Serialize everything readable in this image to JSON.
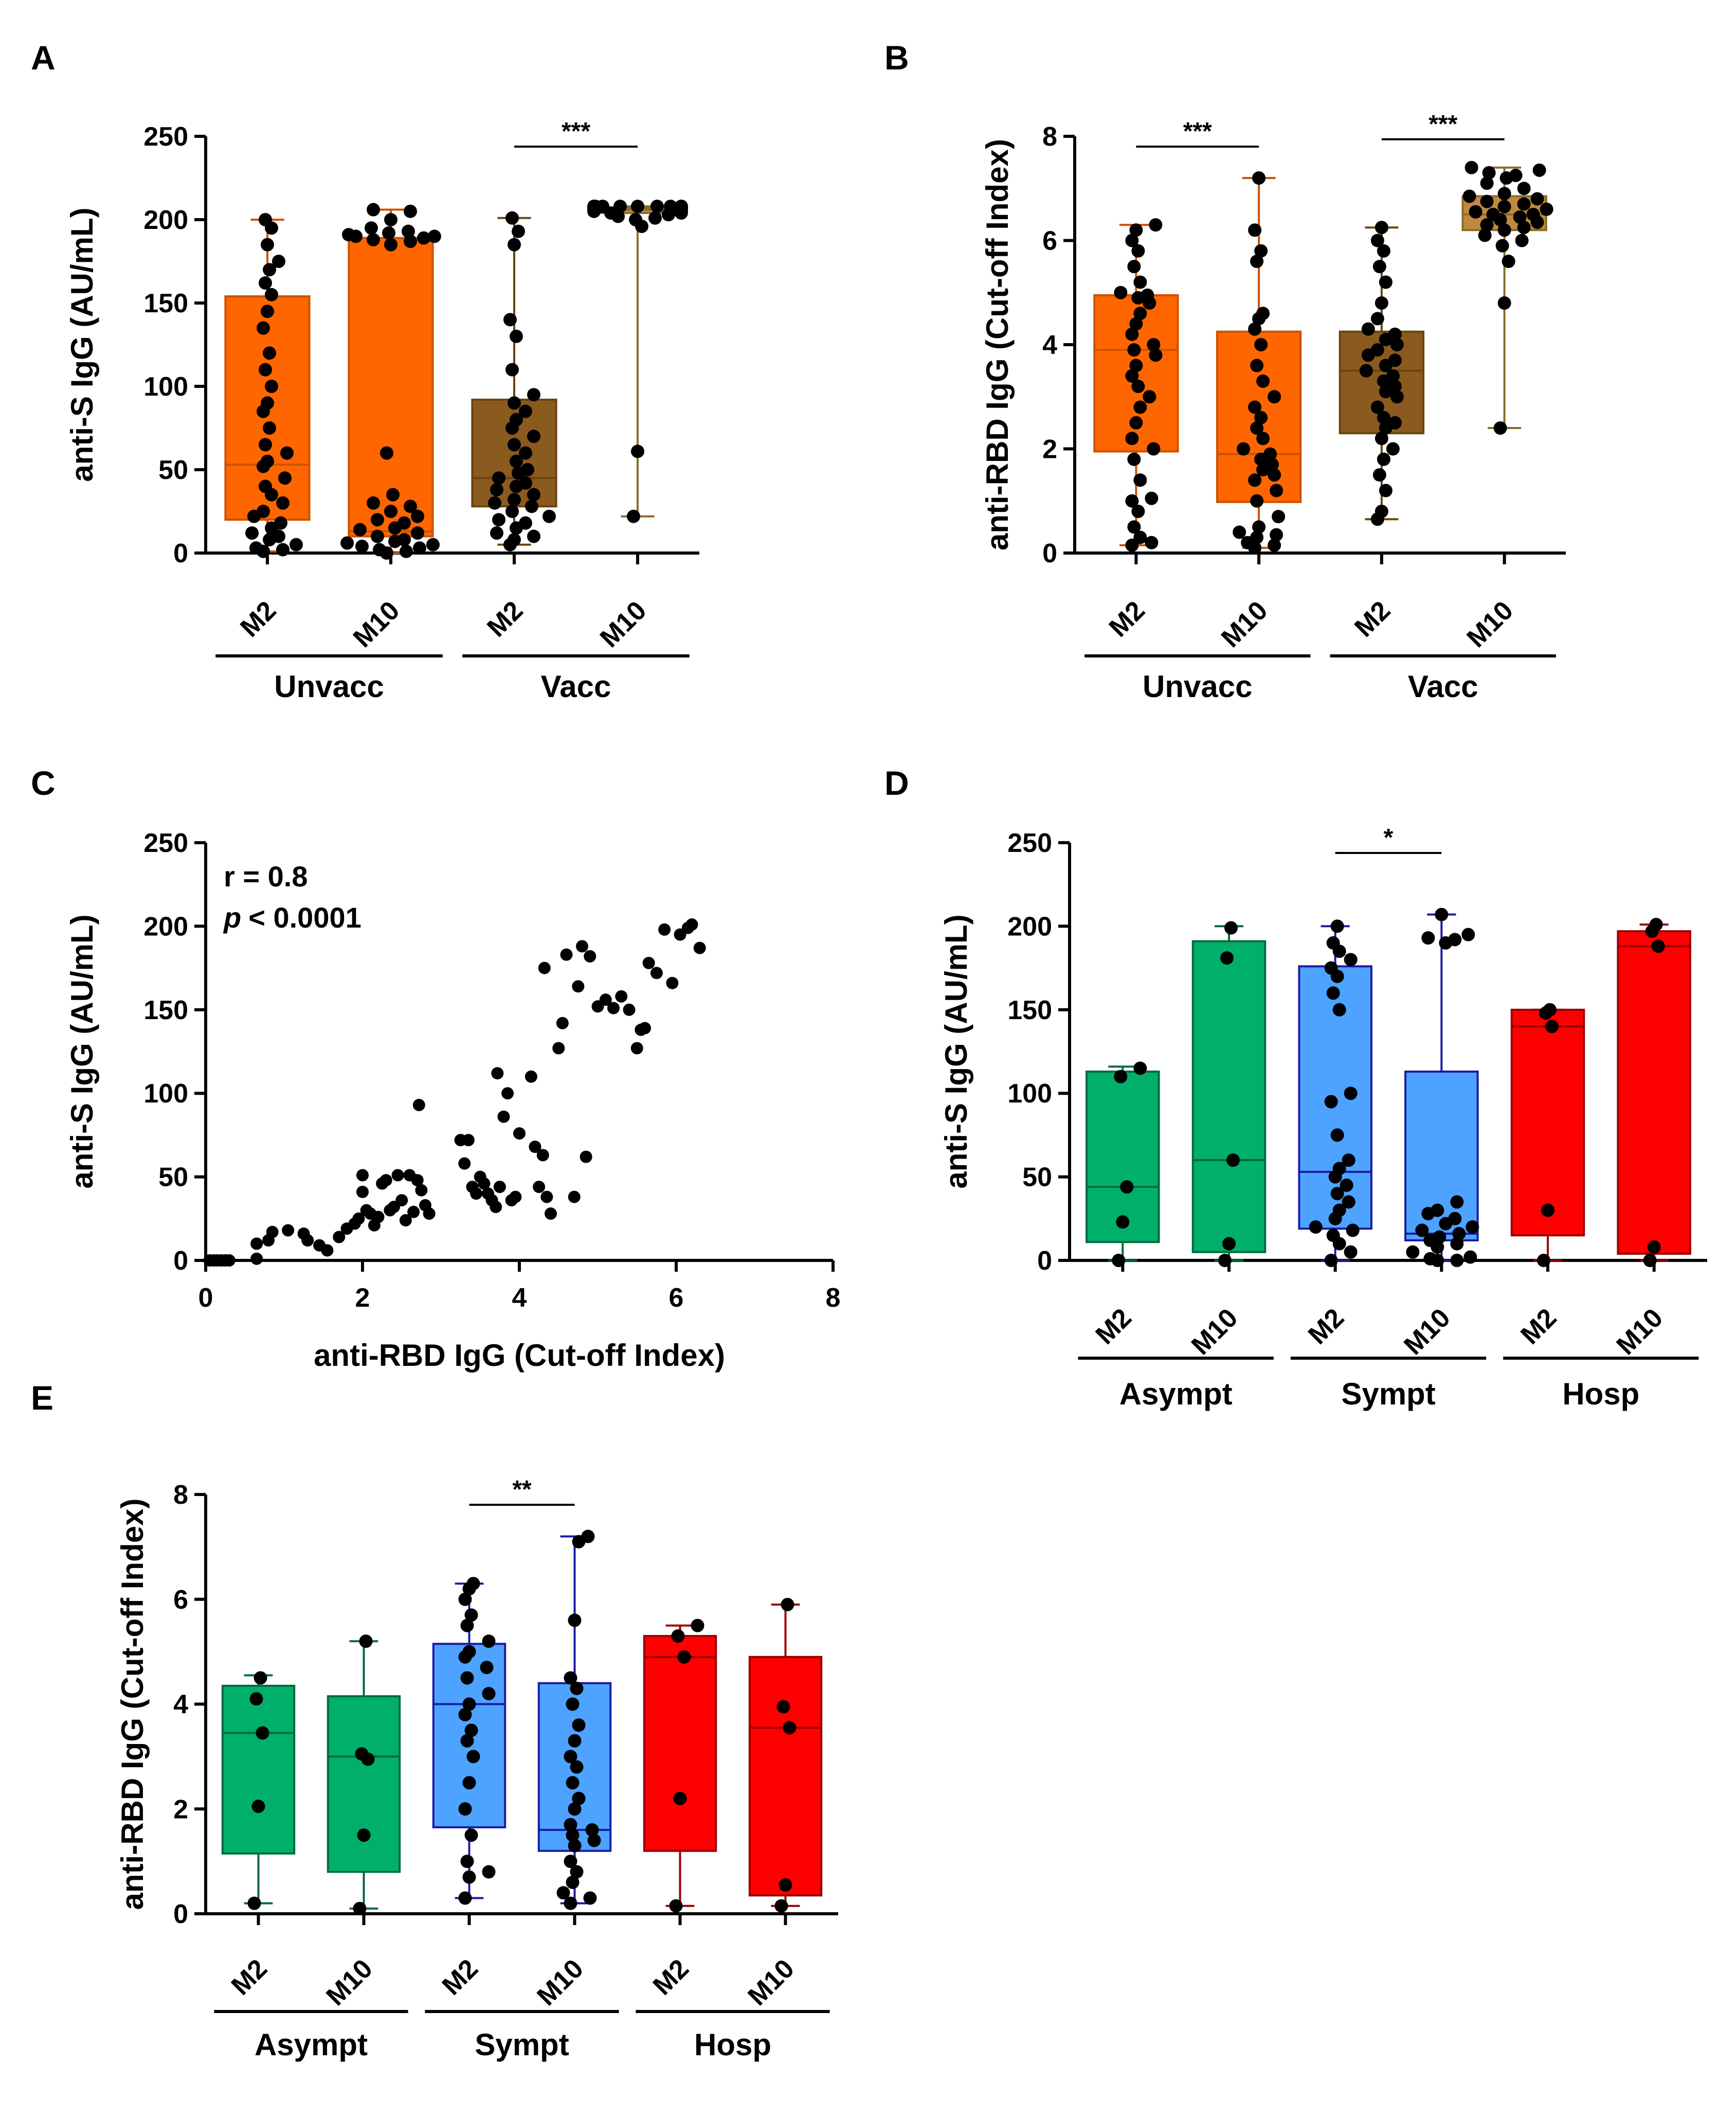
{
  "figure": {
    "panel_letters": [
      "A",
      "B",
      "C",
      "D",
      "E"
    ]
  },
  "chart_data": [
    {
      "id": "A",
      "type": "box",
      "ylabel": "anti-S IgG (AU/mL)",
      "ylim": [
        0,
        250
      ],
      "yticks": [
        0,
        50,
        100,
        150,
        200,
        250
      ],
      "categories": [
        "M2",
        "M10",
        "M2",
        "M10"
      ],
      "groups": [
        {
          "name": "Unvacc",
          "span": [
            0,
            1
          ]
        },
        {
          "name": "Vacc",
          "span": [
            2,
            3
          ]
        }
      ],
      "significance": [
        {
          "from": 2,
          "to": 3,
          "label": "***"
        }
      ],
      "boxes": [
        {
          "q1": 20,
          "median": 53,
          "q3": 154,
          "min": 1,
          "max": 200,
          "fill": "#ff6600",
          "line": "#cc5200",
          "points": [
            1,
            2,
            3,
            5,
            8,
            10,
            12,
            15,
            18,
            22,
            25,
            30,
            35,
            40,
            45,
            52,
            55,
            60,
            65,
            75,
            85,
            90,
            100,
            110,
            120,
            135,
            145,
            155,
            162,
            170,
            175,
            185,
            195,
            200
          ]
        },
        {
          "q1": 10,
          "median": 13,
          "q3": 189,
          "min": 0,
          "max": 206,
          "fill": "#ff6600",
          "line": "#cc5200",
          "points": [
            0,
            1,
            2,
            3,
            4,
            5,
            6,
            7,
            8,
            10,
            12,
            14,
            15,
            18,
            20,
            22,
            25,
            28,
            30,
            35,
            60,
            185,
            187,
            188,
            189,
            190,
            190,
            191,
            192,
            193,
            195,
            200,
            205,
            206
          ]
        },
        {
          "q1": 28,
          "median": 45,
          "q3": 92,
          "min": 5,
          "max": 201,
          "fill": "#8b5a1e",
          "line": "#6b4410",
          "points": [
            5,
            8,
            10,
            12,
            15,
            18,
            20,
            22,
            25,
            28,
            30,
            32,
            35,
            38,
            40,
            42,
            45,
            48,
            50,
            55,
            60,
            65,
            70,
            75,
            80,
            85,
            90,
            95,
            110,
            130,
            140,
            185,
            193,
            201
          ]
        },
        {
          "q1": 204,
          "median": 206,
          "q3": 207,
          "min": 22,
          "max": 208,
          "fill": "#c08a3e",
          "line": "#8b6a2a",
          "points": [
            22,
            61,
            196,
            200,
            201,
            202,
            203,
            204,
            204,
            205,
            205,
            205,
            206,
            206,
            206,
            206,
            207,
            207,
            207,
            207,
            207,
            208,
            208,
            208,
            208,
            208,
            208,
            208,
            208,
            208,
            208,
            208,
            208,
            208
          ]
        }
      ]
    },
    {
      "id": "B",
      "type": "box",
      "ylabel": "anti-RBD IgG (Cut-off Index)",
      "ylim": [
        0,
        8
      ],
      "yticks": [
        0,
        2,
        4,
        6,
        8
      ],
      "categories": [
        "M2",
        "M10",
        "M2",
        "M10"
      ],
      "groups": [
        {
          "name": "Unvacc",
          "span": [
            0,
            1
          ]
        },
        {
          "name": "Vacc",
          "span": [
            2,
            3
          ]
        }
      ],
      "significance": [
        {
          "from": 0,
          "to": 1,
          "label": "***"
        },
        {
          "from": 2,
          "to": 3,
          "label": "***"
        }
      ],
      "boxes": [
        {
          "q1": 1.95,
          "median": 3.9,
          "q3": 4.95,
          "min": 0.15,
          "max": 6.3,
          "fill": "#ff6600",
          "line": "#cc5200",
          "points": [
            0.15,
            0.2,
            0.3,
            0.5,
            0.8,
            1.0,
            1.05,
            1.4,
            1.8,
            2.0,
            2.2,
            2.5,
            2.8,
            3.0,
            3.2,
            3.4,
            3.6,
            3.8,
            3.9,
            4.0,
            4.2,
            4.4,
            4.6,
            4.8,
            4.9,
            4.95,
            5.0,
            5.2,
            5.5,
            5.8,
            6.0,
            6.2,
            6.3
          ]
        },
        {
          "q1": 0.98,
          "median": 1.9,
          "q3": 4.25,
          "min": 0.1,
          "max": 7.2,
          "fill": "#ff6600",
          "line": "#cc5200",
          "points": [
            0.1,
            0.15,
            0.2,
            0.3,
            0.35,
            0.4,
            0.5,
            0.7,
            1.0,
            1.2,
            1.4,
            1.5,
            1.6,
            1.7,
            1.8,
            1.9,
            2.0,
            2.2,
            2.4,
            2.6,
            2.8,
            3.0,
            3.3,
            3.6,
            4.0,
            4.3,
            4.5,
            4.6,
            5.6,
            5.8,
            6.2,
            7.2
          ]
        },
        {
          "q1": 2.3,
          "median": 3.5,
          "q3": 4.25,
          "min": 0.65,
          "max": 6.25,
          "fill": "#8b5a1e",
          "line": "#6b4410",
          "points": [
            0.65,
            0.8,
            1.2,
            1.5,
            1.8,
            2.0,
            2.2,
            2.4,
            2.5,
            2.6,
            2.8,
            3.0,
            3.1,
            3.2,
            3.3,
            3.4,
            3.5,
            3.6,
            3.7,
            3.8,
            3.9,
            4.0,
            4.1,
            4.2,
            4.3,
            4.5,
            4.8,
            5.2,
            5.5,
            5.8,
            6.0,
            6.25
          ]
        },
        {
          "q1": 6.2,
          "median": 6.5,
          "q3": 6.85,
          "min": 2.4,
          "max": 7.4,
          "fill": "#c08a3e",
          "line": "#8b6a2a",
          "points": [
            2.4,
            4.8,
            5.6,
            5.9,
            6.0,
            6.1,
            6.2,
            6.25,
            6.3,
            6.35,
            6.4,
            6.45,
            6.5,
            6.5,
            6.55,
            6.6,
            6.65,
            6.7,
            6.75,
            6.8,
            6.85,
            6.9,
            7.0,
            7.1,
            7.2,
            7.25,
            7.3,
            7.35,
            7.4
          ]
        }
      ]
    },
    {
      "id": "C",
      "type": "scatter",
      "xlabel": "anti-RBD IgG (Cut-off Index)",
      "ylabel": "anti-S IgG (AU/mL)",
      "xlim": [
        0,
        8
      ],
      "ylim": [
        0,
        250
      ],
      "xticks": [
        0,
        2,
        4,
        6,
        8
      ],
      "yticks": [
        0,
        50,
        100,
        150,
        200,
        250
      ],
      "annotation": {
        "r_text": "r = 0.8",
        "p_symbol": "p",
        "p_text": "< 0.0001"
      },
      "points": [
        [
          0.05,
          0
        ],
        [
          0.1,
          0
        ],
        [
          0.15,
          0
        ],
        [
          0.2,
          0
        ],
        [
          0.25,
          0
        ],
        [
          0.3,
          0
        ],
        [
          0.65,
          1
        ],
        [
          0.65,
          10
        ],
        [
          0.8,
          12
        ],
        [
          0.85,
          17
        ],
        [
          1.05,
          18
        ],
        [
          1.25,
          16
        ],
        [
          1.3,
          12
        ],
        [
          1.45,
          9
        ],
        [
          1.55,
          6
        ],
        [
          1.7,
          14
        ],
        [
          1.8,
          19
        ],
        [
          1.9,
          22
        ],
        [
          1.95,
          25
        ],
        [
          2.0,
          41
        ],
        [
          2.0,
          51
        ],
        [
          2.05,
          30
        ],
        [
          2.1,
          28
        ],
        [
          2.15,
          21
        ],
        [
          2.2,
          26
        ],
        [
          2.25,
          46
        ],
        [
          2.3,
          48
        ],
        [
          2.35,
          30
        ],
        [
          2.4,
          32
        ],
        [
          2.45,
          51
        ],
        [
          2.5,
          36
        ],
        [
          2.55,
          24
        ],
        [
          2.6,
          51
        ],
        [
          2.65,
          29
        ],
        [
          2.7,
          48
        ],
        [
          2.72,
          93
        ],
        [
          2.75,
          42
        ],
        [
          2.8,
          33
        ],
        [
          2.85,
          28
        ],
        [
          3.25,
          72
        ],
        [
          3.3,
          58
        ],
        [
          3.35,
          72
        ],
        [
          3.4,
          44
        ],
        [
          3.45,
          40
        ],
        [
          3.5,
          50
        ],
        [
          3.55,
          46
        ],
        [
          3.6,
          40
        ],
        [
          3.65,
          36
        ],
        [
          3.7,
          32
        ],
        [
          3.72,
          112
        ],
        [
          3.75,
          44
        ],
        [
          3.8,
          86
        ],
        [
          3.85,
          100
        ],
        [
          3.9,
          36
        ],
        [
          3.95,
          38
        ],
        [
          4.0,
          76
        ],
        [
          4.15,
          110
        ],
        [
          4.2,
          68
        ],
        [
          4.25,
          44
        ],
        [
          4.3,
          63
        ],
        [
          4.32,
          175
        ],
        [
          4.35,
          38
        ],
        [
          4.4,
          28
        ],
        [
          4.5,
          127
        ],
        [
          4.55,
          142
        ],
        [
          4.6,
          183
        ],
        [
          4.7,
          38
        ],
        [
          4.75,
          164
        ],
        [
          4.8,
          188
        ],
        [
          4.85,
          62
        ],
        [
          4.9,
          182
        ],
        [
          5.0,
          152
        ],
        [
          5.1,
          156
        ],
        [
          5.2,
          151
        ],
        [
          5.3,
          158
        ],
        [
          5.4,
          150
        ],
        [
          5.5,
          127
        ],
        [
          5.55,
          138
        ],
        [
          5.6,
          139
        ],
        [
          5.65,
          178
        ],
        [
          5.75,
          172
        ],
        [
          5.85,
          198
        ],
        [
          5.95,
          166
        ],
        [
          6.05,
          195
        ],
        [
          6.15,
          199
        ],
        [
          6.2,
          201
        ],
        [
          6.3,
          187
        ]
      ]
    },
    {
      "id": "D",
      "type": "box",
      "ylabel": "anti-S IgG (AU/mL)",
      "ylim": [
        0,
        250
      ],
      "yticks": [
        0,
        50,
        100,
        150,
        200,
        250
      ],
      "categories": [
        "M2",
        "M10",
        "M2",
        "M10",
        "M2",
        "M10"
      ],
      "groups": [
        {
          "name": "Asympt",
          "span": [
            0,
            1
          ]
        },
        {
          "name": "Sympt",
          "span": [
            2,
            3
          ]
        },
        {
          "name": "Hosp",
          "span": [
            4,
            5
          ]
        }
      ],
      "significance": [
        {
          "from": 2,
          "to": 3,
          "label": "*"
        }
      ],
      "boxes": [
        {
          "q1": 11,
          "median": 44,
          "q3": 113,
          "min": 0,
          "max": 116,
          "fill": "#00b06a",
          "line": "#006b3c",
          "points": [
            0,
            23,
            44,
            110,
            115
          ]
        },
        {
          "q1": 5,
          "median": 60,
          "q3": 191,
          "min": 0,
          "max": 200,
          "fill": "#00b06a",
          "line": "#006b3c",
          "points": [
            0,
            10,
            60,
            181,
            199
          ]
        },
        {
          "q1": 19,
          "median": 53,
          "q3": 176,
          "min": 0,
          "max": 200,
          "fill": "#4da3ff",
          "line": "#1a1aa6",
          "points": [
            0,
            5,
            10,
            15,
            18,
            20,
            25,
            30,
            35,
            40,
            45,
            50,
            55,
            60,
            75,
            95,
            100,
            150,
            160,
            170,
            175,
            180,
            185,
            190,
            200
          ]
        },
        {
          "q1": 12,
          "median": 16,
          "q3": 113,
          "min": 0,
          "max": 207,
          "fill": "#4da3ff",
          "line": "#1a1aa6",
          "points": [
            0,
            0,
            1,
            2,
            5,
            8,
            10,
            12,
            14,
            16,
            18,
            20,
            22,
            25,
            28,
            30,
            35,
            190,
            192,
            193,
            195,
            207
          ]
        },
        {
          "q1": 15,
          "median": 140,
          "q3": 150,
          "min": 0,
          "max": 150,
          "fill": "#ff0000",
          "line": "#990000",
          "points": [
            0,
            30,
            140,
            148,
            150
          ]
        },
        {
          "q1": 4,
          "median": 188,
          "q3": 197,
          "min": 0,
          "max": 201,
          "fill": "#ff0000",
          "line": "#990000",
          "points": [
            0,
            8,
            188,
            197,
            201
          ]
        }
      ]
    },
    {
      "id": "E",
      "type": "box",
      "ylabel": "anti-RBD IgG (Cut-off Index)",
      "ylim": [
        0,
        8
      ],
      "yticks": [
        0,
        2,
        4,
        6,
        8
      ],
      "categories": [
        "M2",
        "M10",
        "M2",
        "M10",
        "M2",
        "M10"
      ],
      "groups": [
        {
          "name": "Asympt",
          "span": [
            0,
            1
          ]
        },
        {
          "name": "Sympt",
          "span": [
            2,
            3
          ]
        },
        {
          "name": "Hosp",
          "span": [
            4,
            5
          ]
        }
      ],
      "significance": [
        {
          "from": 2,
          "to": 3,
          "label": "**"
        }
      ],
      "boxes": [
        {
          "q1": 1.15,
          "median": 3.45,
          "q3": 4.35,
          "min": 0.2,
          "max": 4.55,
          "fill": "#00b06a",
          "line": "#006b3c",
          "points": [
            0.2,
            2.05,
            3.45,
            4.1,
            4.5
          ]
        },
        {
          "q1": 0.8,
          "median": 3.0,
          "q3": 4.15,
          "min": 0.1,
          "max": 5.2,
          "fill": "#00b06a",
          "line": "#006b3c",
          "points": [
            0.1,
            1.5,
            2.95,
            3.05,
            5.2
          ]
        },
        {
          "q1": 1.65,
          "median": 4.0,
          "q3": 5.15,
          "min": 0.3,
          "max": 6.3,
          "fill": "#4da3ff",
          "line": "#1a1aa6",
          "points": [
            0.3,
            0.7,
            0.8,
            1.0,
            1.5,
            2.0,
            2.5,
            3.0,
            3.3,
            3.5,
            3.8,
            4.0,
            4.2,
            4.5,
            4.7,
            4.9,
            5.0,
            5.2,
            5.5,
            5.7,
            6.0,
            6.2,
            6.3
          ]
        },
        {
          "q1": 1.2,
          "median": 1.6,
          "q3": 4.4,
          "min": 0.2,
          "max": 7.2,
          "fill": "#4da3ff",
          "line": "#1a1aa6",
          "points": [
            0.2,
            0.3,
            0.4,
            0.6,
            0.8,
            1.0,
            1.3,
            1.4,
            1.5,
            1.6,
            1.7,
            2.0,
            2.2,
            2.5,
            2.8,
            3.0,
            3.3,
            3.6,
            4.0,
            4.3,
            4.5,
            5.6,
            7.1,
            7.2
          ]
        },
        {
          "q1": 1.2,
          "median": 4.9,
          "q3": 5.3,
          "min": 0.15,
          "max": 5.5,
          "fill": "#ff0000",
          "line": "#990000",
          "points": [
            0.15,
            2.2,
            4.9,
            5.3,
            5.5
          ]
        },
        {
          "q1": 0.35,
          "median": 3.55,
          "q3": 4.9,
          "min": 0.15,
          "max": 5.9,
          "fill": "#ff0000",
          "line": "#990000",
          "points": [
            0.15,
            0.55,
            3.55,
            3.95,
            5.9
          ]
        }
      ]
    }
  ]
}
